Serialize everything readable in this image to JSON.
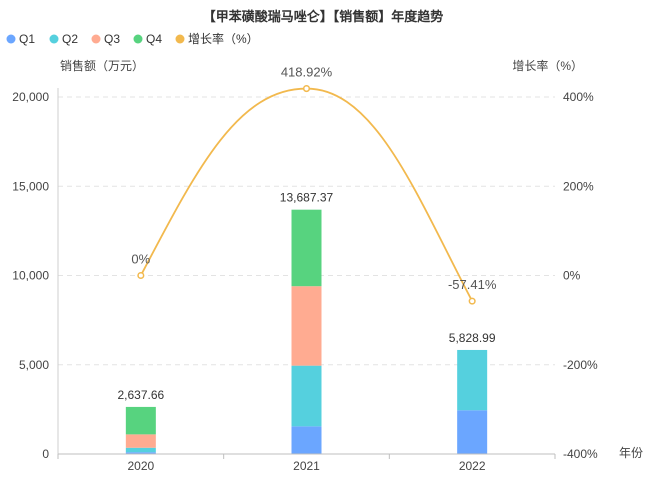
{
  "chart_data": {
    "type": "bar+line",
    "title": "【甲苯磺酸瑞马唑仑】【销售额】年度趋势",
    "categories": [
      "2020",
      "2021",
      "2022"
    ],
    "series": [
      {
        "name": "Q1",
        "type": "stacked-bar",
        "values": [
          100,
          1550,
          2450
        ]
      },
      {
        "name": "Q2",
        "type": "stacked-bar",
        "values": [
          250,
          3400,
          3378.99
        ]
      },
      {
        "name": "Q3",
        "type": "stacked-bar",
        "values": [
          750,
          4450,
          0
        ]
      },
      {
        "name": "Q4",
        "type": "stacked-bar",
        "values": [
          1537.66,
          4287.37,
          0
        ]
      }
    ],
    "totals": [
      2637.66,
      13687.37,
      5828.99
    ],
    "total_labels": [
      "2,637.66",
      "13,687.37",
      "5,828.99"
    ],
    "growth": {
      "name": "增长率（%）",
      "values": [
        0,
        418.92,
        -57.41
      ],
      "labels": [
        "0%",
        "418.92%",
        "-57.41%"
      ]
    },
    "ylabel": "销售额（万元）",
    "y2label": "增长率（%）",
    "xlabel": "年份",
    "ylim": [
      0,
      20000
    ],
    "y2lim": [
      -400,
      400
    ],
    "yticks": [
      "0",
      "5,000",
      "10,000",
      "15,000",
      "20,000"
    ],
    "y2ticks": [
      "-400%",
      "-200%",
      "0%",
      "200%",
      "400%"
    ],
    "legend_position": "top-left",
    "grid": true,
    "colors": {
      "Q1": "#6ba6ff",
      "Q2": "#55d0de",
      "Q3": "#ffab91",
      "Q4": "#57d37f",
      "growth": "#f2b94e"
    }
  }
}
